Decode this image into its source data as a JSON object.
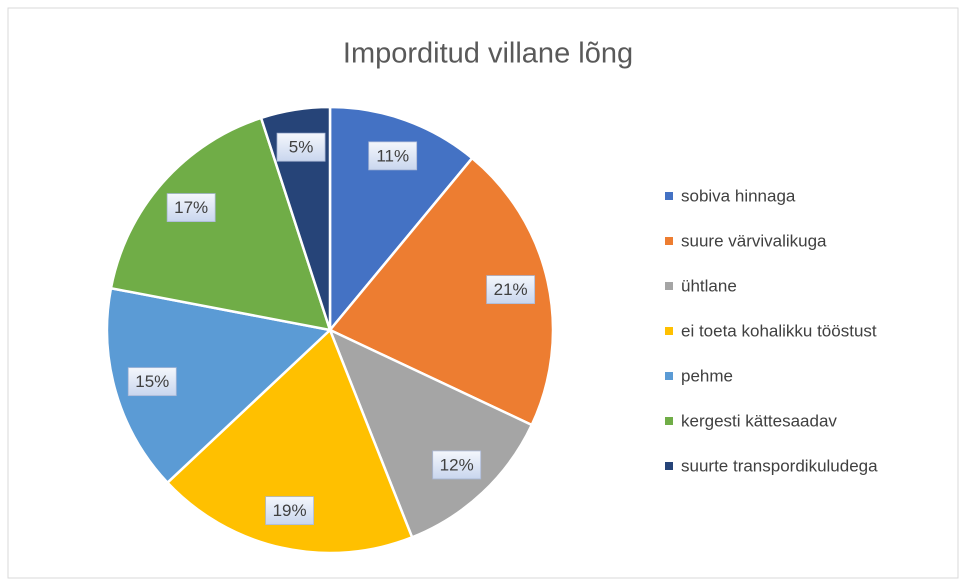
{
  "chart_data": {
    "type": "pie",
    "title": "Imporditud villane lõng",
    "categories": [
      "sobiva hinnaga",
      "suure värvivalikuga",
      "ühtlane",
      "ei toeta kohalikku tööstust",
      "pehme",
      "kergesti kättesaadav",
      "suurte transpordikuludega"
    ],
    "values": [
      11,
      21,
      12,
      19,
      15,
      17,
      5
    ],
    "value_labels": [
      "11%",
      "21%",
      "12%",
      "19%",
      "15%",
      "17%",
      "5%"
    ],
    "colors": [
      "#4472c4",
      "#ed7d31",
      "#a5a5a5",
      "#ffc000",
      "#5b9bd5",
      "#70ad47",
      "#264478"
    ],
    "legend": "right"
  }
}
